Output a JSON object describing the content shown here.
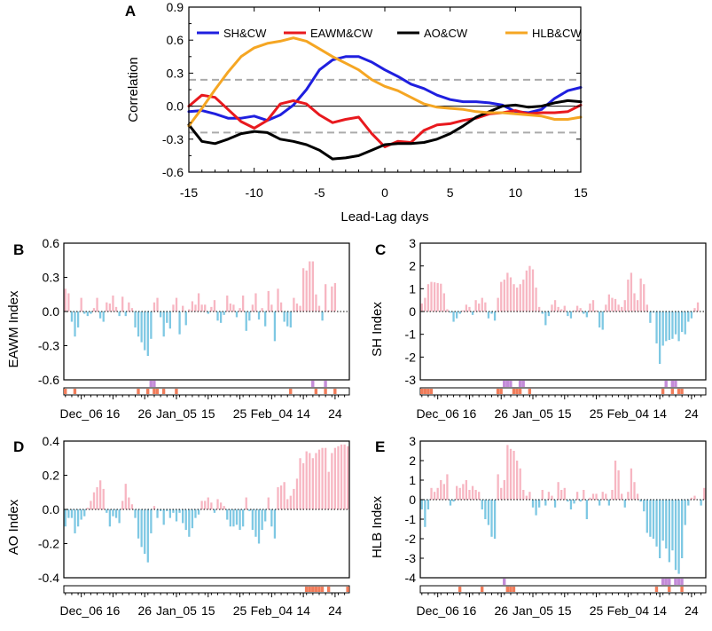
{
  "chart_data": [
    {
      "panel": "A",
      "type": "line",
      "xlabel": "Lead-Lag days",
      "ylabel": "Correlation",
      "xlim": [
        -15,
        15
      ],
      "ylim": [
        -0.6,
        0.9
      ],
      "xticks": [
        -15,
        -10,
        -5,
        0,
        5,
        10,
        15
      ],
      "yticks": [
        -0.6,
        -0.3,
        0.0,
        0.3,
        0.6,
        0.9
      ],
      "xtick_labels": [
        "-15",
        "-10",
        "-5",
        "0",
        "5",
        "10",
        "15"
      ],
      "ytick_labels": [
        "-0.6",
        "-0.3",
        "0.0",
        "0.3",
        "0.6",
        "0.9"
      ],
      "zero_line": 0,
      "significance_lines": [
        0.24,
        -0.24
      ],
      "legend_position": "top",
      "x": [
        -15,
        -14,
        -13,
        -12,
        -11,
        -10,
        -9,
        -8,
        -7,
        -6,
        -5,
        -4,
        -3,
        -2,
        -1,
        0,
        1,
        2,
        3,
        4,
        5,
        6,
        7,
        8,
        9,
        10,
        11,
        12,
        13,
        14,
        15
      ],
      "series": [
        {
          "name": "SH&CW",
          "color": "#1f1fdf",
          "values": [
            -0.05,
            -0.04,
            -0.07,
            -0.11,
            -0.11,
            -0.09,
            -0.13,
            -0.08,
            0.01,
            0.15,
            0.33,
            0.42,
            0.45,
            0.45,
            0.4,
            0.33,
            0.27,
            0.2,
            0.16,
            0.1,
            0.06,
            0.04,
            0.04,
            0.03,
            0.01,
            -0.05,
            -0.06,
            -0.03,
            0.07,
            0.14,
            0.17
          ]
        },
        {
          "name": "EAWM&CW",
          "color": "#e8191e",
          "values": [
            0.0,
            0.1,
            0.08,
            -0.03,
            -0.14,
            -0.2,
            -0.13,
            0.02,
            0.05,
            0.02,
            -0.08,
            -0.15,
            -0.12,
            -0.1,
            -0.25,
            -0.37,
            -0.32,
            -0.33,
            -0.22,
            -0.17,
            -0.16,
            -0.13,
            -0.11,
            -0.07,
            -0.06,
            -0.04,
            -0.07,
            -0.06,
            -0.06,
            -0.05,
            0.01
          ]
        },
        {
          "name": "AO&CW",
          "color": "#000000",
          "values": [
            -0.17,
            -0.32,
            -0.34,
            -0.3,
            -0.25,
            -0.23,
            -0.24,
            -0.3,
            -0.32,
            -0.35,
            -0.4,
            -0.48,
            -0.47,
            -0.45,
            -0.4,
            -0.35,
            -0.34,
            -0.34,
            -0.33,
            -0.3,
            -0.25,
            -0.18,
            -0.1,
            -0.05,
            0.0,
            0.01,
            -0.01,
            0.0,
            0.03,
            0.05,
            0.04
          ]
        },
        {
          "name": "HLB&CW",
          "color": "#f5a623",
          "values": [
            -0.18,
            -0.02,
            0.15,
            0.31,
            0.45,
            0.53,
            0.57,
            0.59,
            0.62,
            0.59,
            0.52,
            0.45,
            0.39,
            0.33,
            0.24,
            0.18,
            0.14,
            0.08,
            0.02,
            -0.01,
            -0.02,
            -0.03,
            -0.05,
            -0.06,
            -0.06,
            -0.07,
            -0.08,
            -0.09,
            -0.12,
            -0.12,
            -0.1
          ]
        }
      ]
    },
    {
      "panel": "B",
      "type": "bar",
      "ylabel": "EAWM Index",
      "ylim": [
        -0.6,
        0.6
      ],
      "yticks": [
        -0.6,
        -0.3,
        0.0,
        0.3,
        0.6
      ],
      "ytick_labels": [
        "-0.6",
        "-0.3",
        "0.0",
        "0.3",
        "0.6"
      ],
      "xtick_labels": [
        "Dec_06",
        "16",
        "26",
        "Jan_05",
        "15",
        "25",
        "Feb_04",
        "14",
        "24"
      ],
      "xtick_days": [
        6,
        16,
        26,
        36,
        46,
        56,
        66,
        76,
        86
      ],
      "positive_color": "#f7b6c2",
      "negative_color": "#7ec8e3",
      "day_start": 1,
      "values": [
        0.2,
        0.16,
        -0.09,
        -0.22,
        -0.14,
        0.12,
        -0.02,
        -0.04,
        -0.02,
        0.03,
        0.12,
        -0.06,
        -0.09,
        0.08,
        0.07,
        0.14,
        0.04,
        -0.04,
        0.13,
        -0.04,
        0.08,
        0.03,
        -0.14,
        -0.22,
        -0.27,
        -0.34,
        -0.39,
        -0.24,
        0.08,
        0.12,
        -0.05,
        -0.22,
        -0.1,
        -0.15,
        0.06,
        0.12,
        -0.2,
        0.05,
        -0.12,
        0.02,
        0.09,
        0.06,
        0.16,
        0.06,
        0.06,
        -0.02,
        0.04,
        0.1,
        -0.08,
        -0.1,
        -0.03,
        0.14,
        0.07,
        0.06,
        -0.05,
        0.03,
        0.14,
        -0.17,
        -0.08,
        0.06,
        0.16,
        -0.07,
        0.03,
        -0.13,
        0.18,
        0.06,
        -0.26,
        0.2,
        0.08,
        -0.09,
        -0.13,
        -0.14,
        0.12,
        0.07,
        0.05,
        0.38,
        0.36,
        0.44,
        0.44,
        0.15,
        0.05,
        -0.08,
        0.24,
        0.01,
        0.22,
        0.25,
        0.0,
        0.0,
        0.0,
        0.0
      ],
      "event_markers": [
        {
          "day": 1,
          "color": "#f07c5a"
        },
        {
          "day": 4,
          "color": "#f07c5a"
        },
        {
          "day": 24,
          "color": "#f07c5a"
        },
        {
          "day": 27,
          "color": "#f07c5a"
        },
        {
          "day": 29,
          "color": "#f07c5a"
        },
        {
          "day": 30,
          "color": "#f07c5a"
        },
        {
          "day": 32,
          "color": "#f07c5a"
        },
        {
          "day": 36,
          "color": "#f07c5a"
        },
        {
          "day": 72,
          "color": "#f07c5a"
        },
        {
          "day": 80,
          "color": "#f07c5a"
        },
        {
          "day": 83,
          "color": "#f07c5a"
        },
        {
          "day": 86,
          "color": "#f07c5a"
        }
      ],
      "purple_markers": [
        {
          "day": 28,
          "color": "#c38bd8"
        },
        {
          "day": 29,
          "color": "#c38bd8"
        },
        {
          "day": 79,
          "color": "#c38bd8"
        },
        {
          "day": 83,
          "color": "#c38bd8"
        }
      ]
    },
    {
      "panel": "C",
      "type": "bar",
      "ylabel": "SH Index",
      "ylim": [
        -3,
        3
      ],
      "yticks": [
        -3,
        -2,
        -1,
        0,
        1,
        2,
        3
      ],
      "ytick_labels": [
        "-3",
        "-2",
        "-1",
        "0",
        "1",
        "2",
        "3"
      ],
      "xtick_labels": [
        "Dec_06",
        "16",
        "26",
        "Jan_05",
        "15",
        "25",
        "Feb_04",
        "14",
        "24"
      ],
      "xtick_days": [
        6,
        16,
        26,
        36,
        46,
        56,
        66,
        76,
        86
      ],
      "positive_color": "#f7b6c2",
      "negative_color": "#7ec8e3",
      "day_start": 1,
      "values": [
        0.35,
        0.6,
        1.2,
        1.3,
        1.28,
        1.25,
        1.22,
        0.8,
        0.1,
        -0.05,
        -0.45,
        -0.3,
        -0.1,
        0.05,
        0.3,
        0.2,
        -0.15,
        0.5,
        0.35,
        0.6,
        0.4,
        -0.3,
        -0.1,
        -0.4,
        0.6,
        1.3,
        1.4,
        1.7,
        1.5,
        1.2,
        1.05,
        1.2,
        1.4,
        1.8,
        2.0,
        1.85,
        1.05,
        0.2,
        -0.1,
        -0.6,
        -0.2,
        0.3,
        0.5,
        0.2,
        0.1,
        0.25,
        -0.2,
        -0.3,
        0.05,
        0.25,
        0.15,
        -0.1,
        -0.25,
        0.35,
        0.5,
        0.05,
        -0.7,
        -0.8,
        0.3,
        0.75,
        0.6,
        0.55,
        0.3,
        0.2,
        0.5,
        1.4,
        1.7,
        0.8,
        0.5,
        1.45,
        1.2,
        0.3,
        -0.5,
        -0.05,
        -1.4,
        -2.3,
        -1.5,
        -1.3,
        -1.25,
        -1.2,
        -1.0,
        -1.3,
        -0.9,
        -1.0,
        -0.45,
        -0.3,
        0.15,
        0.4,
        0.0,
        0.0
      ],
      "event_markers": [
        {
          "day": 1,
          "color": "#f07c5a"
        },
        {
          "day": 2,
          "color": "#f07c5a"
        },
        {
          "day": 3,
          "color": "#f07c5a"
        },
        {
          "day": 4,
          "color": "#f07c5a"
        },
        {
          "day": 25,
          "color": "#f07c5a"
        },
        {
          "day": 26,
          "color": "#f07c5a"
        },
        {
          "day": 30,
          "color": "#f07c5a"
        },
        {
          "day": 31,
          "color": "#f07c5a"
        },
        {
          "day": 32,
          "color": "#f07c5a"
        },
        {
          "day": 35,
          "color": "#f07c5a"
        },
        {
          "day": 77,
          "color": "#f07c5a"
        },
        {
          "day": 80,
          "color": "#f07c5a"
        },
        {
          "day": 82,
          "color": "#f07c5a"
        },
        {
          "day": 83,
          "color": "#f07c5a"
        }
      ],
      "purple_markers": [
        {
          "day": 27,
          "color": "#c38bd8"
        },
        {
          "day": 28,
          "color": "#c38bd8"
        },
        {
          "day": 29,
          "color": "#c38bd8"
        },
        {
          "day": 32,
          "color": "#c38bd8"
        },
        {
          "day": 33,
          "color": "#c38bd8"
        },
        {
          "day": 78,
          "color": "#c38bd8"
        },
        {
          "day": 80,
          "color": "#c38bd8"
        },
        {
          "day": 81,
          "color": "#c38bd8"
        }
      ]
    },
    {
      "panel": "D",
      "type": "bar",
      "ylabel": "AO Index",
      "ylim": [
        -0.4,
        0.4
      ],
      "yticks": [
        -0.4,
        -0.2,
        0.0,
        0.2,
        0.4
      ],
      "ytick_labels": [
        "-0.4",
        "-0.2",
        "0.0",
        "0.2",
        "0.4"
      ],
      "xtick_labels": [
        "Dec_06",
        "16",
        "26",
        "Jan_05",
        "15",
        "25",
        "Feb_04",
        "14",
        "24"
      ],
      "xtick_days": [
        6,
        16,
        26,
        36,
        46,
        56,
        66,
        76,
        86
      ],
      "positive_color": "#f7b6c2",
      "negative_color": "#7ec8e3",
      "day_start": 1,
      "values": [
        -0.1,
        -0.05,
        -0.05,
        -0.14,
        -0.1,
        -0.06,
        -0.04,
        0.01,
        0.05,
        0.1,
        0.13,
        0.17,
        0.12,
        -0.02,
        -0.1,
        -0.04,
        -0.05,
        -0.08,
        0.05,
        0.15,
        0.07,
        0.03,
        -0.05,
        -0.17,
        -0.22,
        -0.26,
        -0.31,
        -0.14,
        0.02,
        -0.05,
        -0.01,
        -0.09,
        -0.01,
        -0.05,
        -0.02,
        -0.07,
        -0.02,
        -0.08,
        -0.12,
        -0.16,
        -0.11,
        -0.05,
        -0.03,
        0.05,
        0.05,
        0.07,
        0.04,
        -0.02,
        0.06,
        0.04,
        0.02,
        -0.06,
        -0.1,
        -0.1,
        -0.09,
        -0.12,
        -0.1,
        0.07,
        -0.01,
        -0.12,
        -0.16,
        -0.2,
        -0.12,
        -0.07,
        0.07,
        -0.1,
        -0.17,
        0.13,
        0.14,
        0.16,
        0.06,
        0.08,
        0.12,
        0.18,
        0.3,
        0.27,
        0.34,
        0.33,
        0.3,
        0.33,
        0.35,
        0.36,
        0.36,
        0.22,
        0.33,
        0.36,
        0.37,
        0.38,
        0.38,
        0.37
      ],
      "event_markers": [
        {
          "day": 77,
          "color": "#f07c5a"
        },
        {
          "day": 78,
          "color": "#f07c5a"
        },
        {
          "day": 79,
          "color": "#f07c5a"
        },
        {
          "day": 80,
          "color": "#f07c5a"
        },
        {
          "day": 81,
          "color": "#f07c5a"
        },
        {
          "day": 82,
          "color": "#f07c5a"
        },
        {
          "day": 84,
          "color": "#f07c5a"
        },
        {
          "day": 90,
          "color": "#f07c5a"
        }
      ],
      "purple_markers": []
    },
    {
      "panel": "E",
      "type": "bar",
      "ylabel": "HLB Index",
      "ylim": [
        -4,
        3
      ],
      "yticks": [
        -4,
        -3,
        -2,
        -1,
        0,
        1,
        2,
        3
      ],
      "ytick_labels": [
        "-4",
        "-3",
        "-2",
        "-1",
        "0",
        "1",
        "2",
        "3"
      ],
      "xtick_labels": [
        "Dec_06",
        "16",
        "26",
        "Jan_05",
        "15",
        "25",
        "Feb_04",
        "14",
        "24"
      ],
      "xtick_days": [
        6,
        16,
        26,
        36,
        46,
        56,
        66,
        76,
        86
      ],
      "positive_color": "#f7b6c2",
      "negative_color": "#7ec8e3",
      "day_start": 1,
      "values": [
        -0.5,
        -1.4,
        -0.5,
        0.6,
        0.4,
        0.6,
        1.0,
        0.8,
        1.3,
        -0.3,
        -0.1,
        0.7,
        0.6,
        0.8,
        1.0,
        0.5,
        0.7,
        0.5,
        0.4,
        -0.5,
        -1.0,
        -1.3,
        -1.9,
        -2.0,
        1.3,
        0.6,
        1.0,
        2.8,
        2.6,
        2.5,
        2.0,
        1.6,
        0.5,
        0.2,
        0.4,
        -0.4,
        -0.8,
        -0.4,
        0.5,
        -0.3,
        0.4,
        0.2,
        -0.4,
        0.9,
        0.5,
        0.6,
        -0.1,
        -0.5,
        -0.2,
        0.4,
        -0.1,
        0.5,
        -1.0,
        0.1,
        0.3,
        0.3,
        -0.3,
        0.4,
        0.3,
        -0.3,
        0.5,
        2.0,
        1.5,
        0.3,
        -0.4,
        0.4,
        1.6,
        0.9,
        0.3,
        -0.1,
        -0.6,
        -1.7,
        -1.9,
        -2.0,
        -2.4,
        -3.0,
        -2.1,
        -2.5,
        -3.2,
        -2.6,
        -3.6,
        -3.8,
        -3.0,
        -1.3,
        -0.3,
        0.1,
        0.2,
        0.0,
        -0.3,
        0.6
      ],
      "event_markers": [
        {
          "day": 13,
          "color": "#f07c5a"
        },
        {
          "day": 20,
          "color": "#f07c5a"
        },
        {
          "day": 28,
          "color": "#f07c5a"
        },
        {
          "day": 29,
          "color": "#f07c5a"
        },
        {
          "day": 30,
          "color": "#f07c5a"
        },
        {
          "day": 75,
          "color": "#f07c5a"
        },
        {
          "day": 79,
          "color": "#f07c5a"
        },
        {
          "day": 83,
          "color": "#f07c5a"
        }
      ],
      "purple_markers": [
        {
          "day": 27,
          "color": "#c38bd8"
        },
        {
          "day": 77,
          "color": "#c38bd8"
        },
        {
          "day": 78,
          "color": "#c38bd8"
        },
        {
          "day": 79,
          "color": "#c38bd8"
        },
        {
          "day": 81,
          "color": "#c38bd8"
        },
        {
          "day": 82,
          "color": "#c38bd8"
        },
        {
          "day": 83,
          "color": "#c38bd8"
        }
      ]
    }
  ]
}
